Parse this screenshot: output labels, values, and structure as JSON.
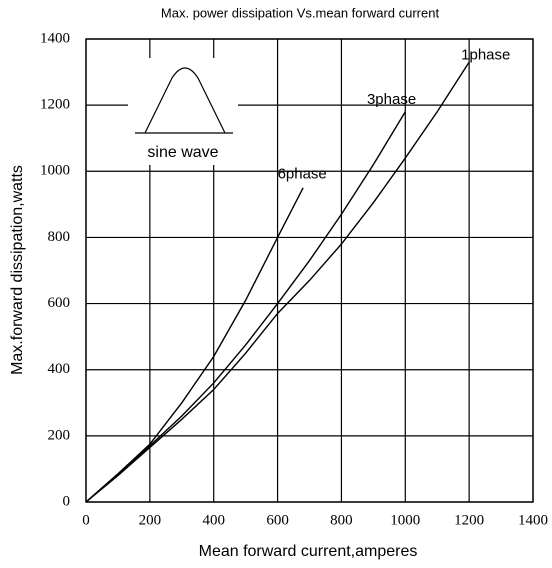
{
  "chart_data": {
    "type": "line",
    "title": "Max. power dissipation  Vs.mean  forward  current",
    "xlabel": "Mean forward  current,amperes",
    "ylabel": "Max.forward  dissipation,watts",
    "xlim": [
      0,
      1400
    ],
    "xticks": [
      0,
      200,
      400,
      600,
      800,
      1000,
      1200,
      1400
    ],
    "ylim": [
      0,
      1400
    ],
    "yticks": [
      0,
      200,
      400,
      600,
      800,
      1000,
      1200,
      1400
    ],
    "grid": true,
    "annotations": [
      "sine wave"
    ],
    "series": [
      {
        "name": "1phase",
        "color": "#000000",
        "x": [
          0,
          100,
          200,
          300,
          400,
          500,
          600,
          700,
          800,
          900,
          1000,
          1100,
          1200
        ],
        "values": [
          0,
          80,
          165,
          250,
          340,
          450,
          570,
          670,
          780,
          905,
          1040,
          1180,
          1330
        ]
      },
      {
        "name": "3phase",
        "color": "#000000",
        "x": [
          0,
          100,
          200,
          300,
          400,
          500,
          600,
          700,
          800,
          900,
          1000
        ],
        "values": [
          0,
          85,
          170,
          260,
          360,
          475,
          600,
          730,
          870,
          1020,
          1180
        ]
      },
      {
        "name": "6phase",
        "color": "#000000",
        "x": [
          0,
          100,
          200,
          300,
          400,
          500,
          600,
          680
        ],
        "values": [
          0,
          85,
          175,
          300,
          440,
          610,
          800,
          950
        ]
      }
    ]
  }
}
